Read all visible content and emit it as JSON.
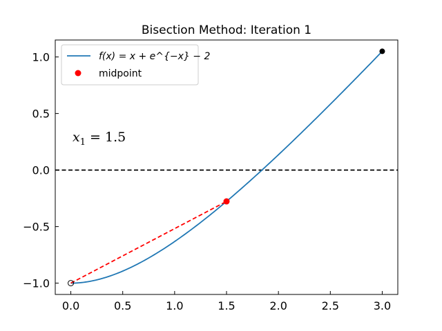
{
  "chart_data": {
    "type": "line",
    "title": "Bisection Method: Iteration 1",
    "xlabel": "",
    "ylabel": "",
    "xlim": [
      -0.15,
      3.15
    ],
    "ylim": [
      -1.1,
      1.15
    ],
    "xticks": [
      0.0,
      0.5,
      1.0,
      1.5,
      2.0,
      2.5,
      3.0
    ],
    "xtick_labels": [
      "0.0",
      "0.5",
      "1.0",
      "1.5",
      "2.0",
      "2.5",
      "3.0"
    ],
    "yticks": [
      -1.0,
      -0.5,
      0.0,
      0.5,
      1.0
    ],
    "ytick_labels": [
      "−1.0",
      "−0.5",
      "0.0",
      "0.5",
      "1.0"
    ],
    "grid": false,
    "legend_position": "top-left",
    "series": [
      {
        "name": "f(x) = x + e^{−x} − 2",
        "type": "line",
        "function": "x + exp(-x) - 2",
        "x_range": [
          0,
          3
        ],
        "color": "#1f77b4"
      },
      {
        "name": "midpoint",
        "type": "scatter",
        "points": [
          {
            "x": 1.5,
            "y": -0.277
          }
        ],
        "color": "#ff0000"
      }
    ],
    "endpoints": [
      {
        "x": 0.0,
        "y": -1.0,
        "style": "open",
        "color": "#000000"
      },
      {
        "x": 3.0,
        "y": 1.05,
        "style": "filled",
        "color": "#000000"
      }
    ],
    "secant_line": {
      "x": [
        0.0,
        1.5
      ],
      "y": [
        -1.0,
        -0.277
      ],
      "color": "#ff0000",
      "style": "dashed"
    },
    "reference_line": {
      "y": 0.0,
      "color": "#000000",
      "style": "dashed"
    },
    "annotation": {
      "prefix": "x",
      "subscript": "1",
      "suffix": " = 1.5"
    }
  }
}
